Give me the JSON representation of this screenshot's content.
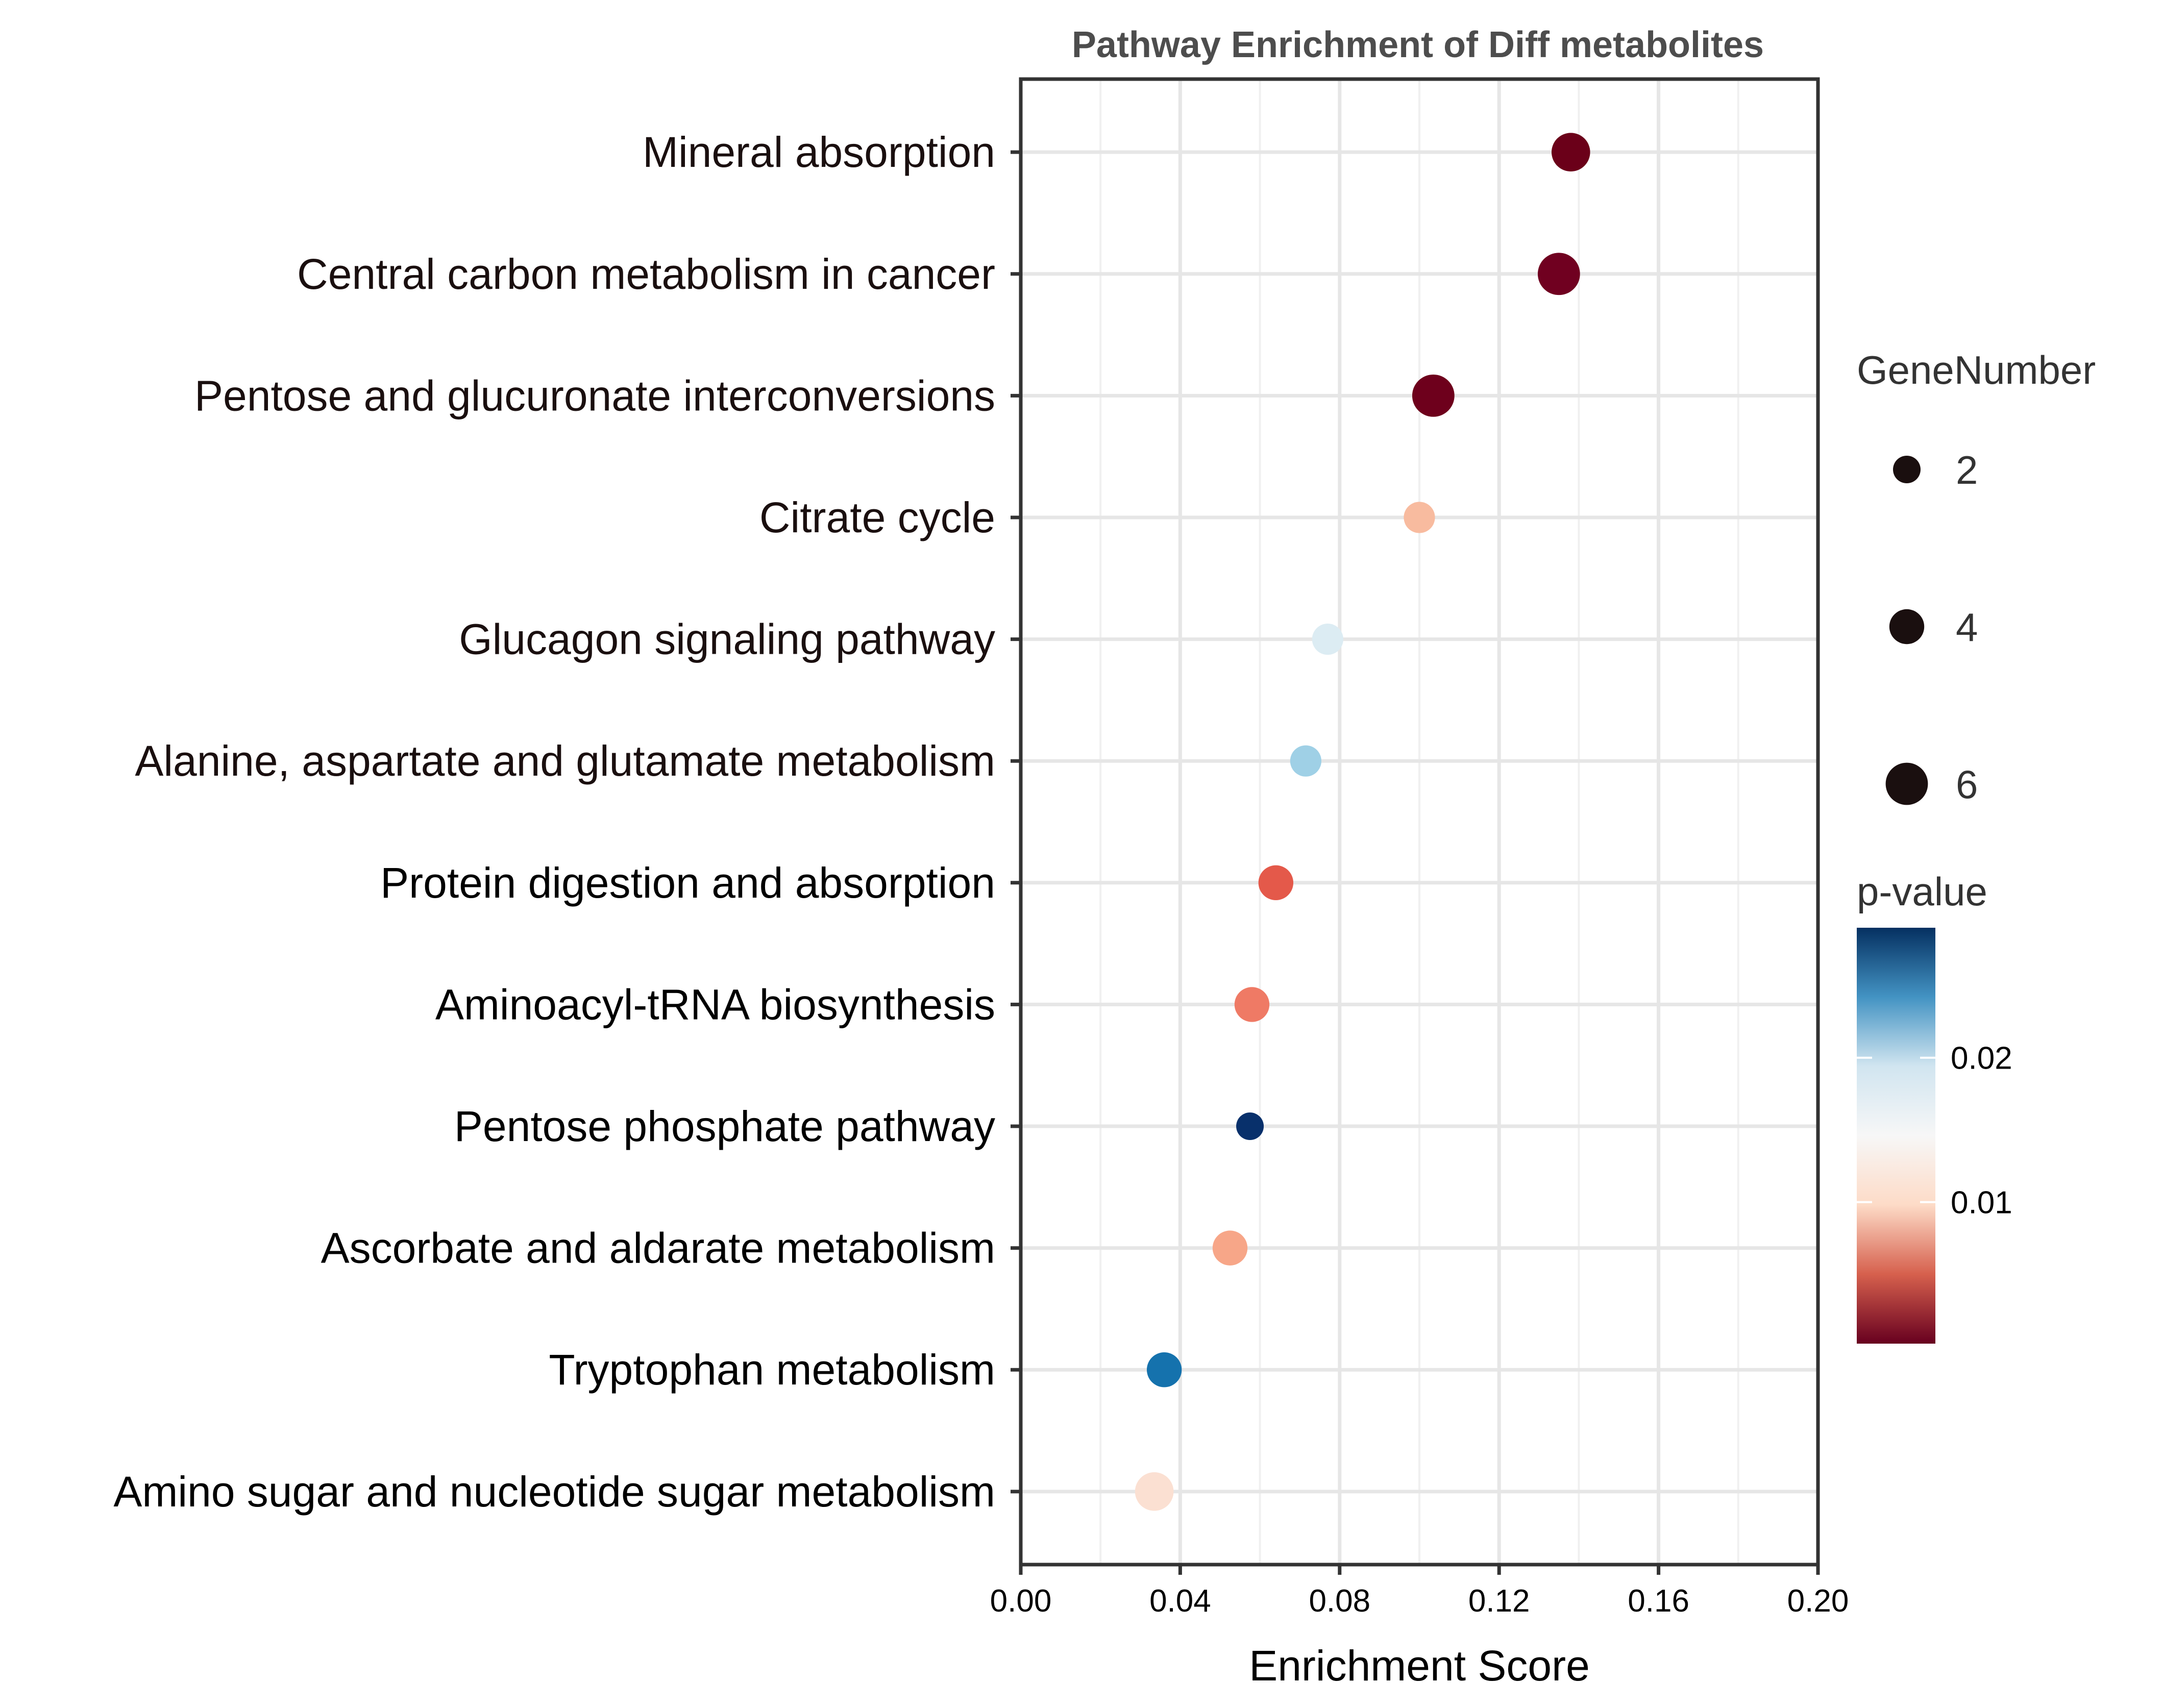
{
  "chart_data": {
    "type": "scatter",
    "title": "Pathway Enrichment of Diff metabolites",
    "xlabel": "Enrichment Score",
    "ylabel": "",
    "xlim": [
      0.0,
      0.2
    ],
    "x_ticks": [
      "0.00",
      "0.04",
      "0.08",
      "0.12",
      "0.16",
      "0.20"
    ],
    "x_tick_values": [
      0.0,
      0.04,
      0.08,
      0.12,
      0.16,
      0.2
    ],
    "grid": true,
    "categories": [
      "Mineral absorption",
      "Central carbon metabolism in cancer",
      "Pentose and glucuronate interconversions",
      "Citrate cycle",
      "Glucagon signaling pathway",
      "Alanine, aspartate and glutamate metabolism",
      "Protein digestion and absorption",
      "Aminoacyl-tRNA biosynthesis",
      "Pentose phosphate pathway",
      "Ascorbate and aldarate metabolism",
      "Tryptophan metabolism",
      "Amino sugar and nucleotide sugar metabolism"
    ],
    "points": [
      {
        "category": "Mineral absorption",
        "enrichment_score": 0.138,
        "gene_number": 5,
        "color": "#6b0019"
      },
      {
        "category": "Central carbon metabolism in cancer",
        "enrichment_score": 0.135,
        "gene_number": 6,
        "color": "#700020"
      },
      {
        "category": "Pentose and glucuronate interconversions",
        "enrichment_score": 0.1035,
        "gene_number": 6,
        "color": "#6e001c"
      },
      {
        "category": "Citrate cycle",
        "enrichment_score": 0.1,
        "gene_number": 3,
        "color": "#f8bb9f"
      },
      {
        "category": "Glucagon signaling pathway",
        "enrichment_score": 0.077,
        "gene_number": 3,
        "color": "#dcecf3"
      },
      {
        "category": "Alanine, aspartate and glutamate metabolism",
        "enrichment_score": 0.0715,
        "gene_number": 3,
        "color": "#9fd0e6"
      },
      {
        "category": "Protein digestion and absorption",
        "enrichment_score": 0.064,
        "gene_number": 4,
        "color": "#e4594a"
      },
      {
        "category": "Aminoacyl-tRNA biosynthesis",
        "enrichment_score": 0.058,
        "gene_number": 4,
        "color": "#ef7a65"
      },
      {
        "category": "Pentose phosphate pathway",
        "enrichment_score": 0.0575,
        "gene_number": 2,
        "color": "#08306b"
      },
      {
        "category": "Ascorbate and aldarate metabolism",
        "enrichment_score": 0.0525,
        "gene_number": 4,
        "color": "#f7a688"
      },
      {
        "category": "Tryptophan metabolism",
        "enrichment_score": 0.036,
        "gene_number": 4,
        "color": "#1572ad"
      },
      {
        "category": "Amino sugar and nucleotide sugar metabolism",
        "enrichment_score": 0.0335,
        "gene_number": 5,
        "color": "#fbe0d2"
      }
    ],
    "size_legend": {
      "title": "GeneNumber",
      "entries": [
        {
          "label": "2",
          "value": 2
        },
        {
          "label": "4",
          "value": 4
        },
        {
          "label": "6",
          "value": 6
        }
      ]
    },
    "color_legend": {
      "title": "p-value",
      "ticks": [
        {
          "label": "0.02",
          "value": 0.02
        },
        {
          "label": "0.01",
          "value": 0.01
        }
      ],
      "range": [
        0.0002,
        0.029
      ],
      "stops": [
        "#67001f",
        "#d6604d",
        "#fddbc7",
        "#f7f7f7",
        "#d1e5f0",
        "#4393c3",
        "#053061"
      ]
    },
    "legend_position": "right"
  }
}
